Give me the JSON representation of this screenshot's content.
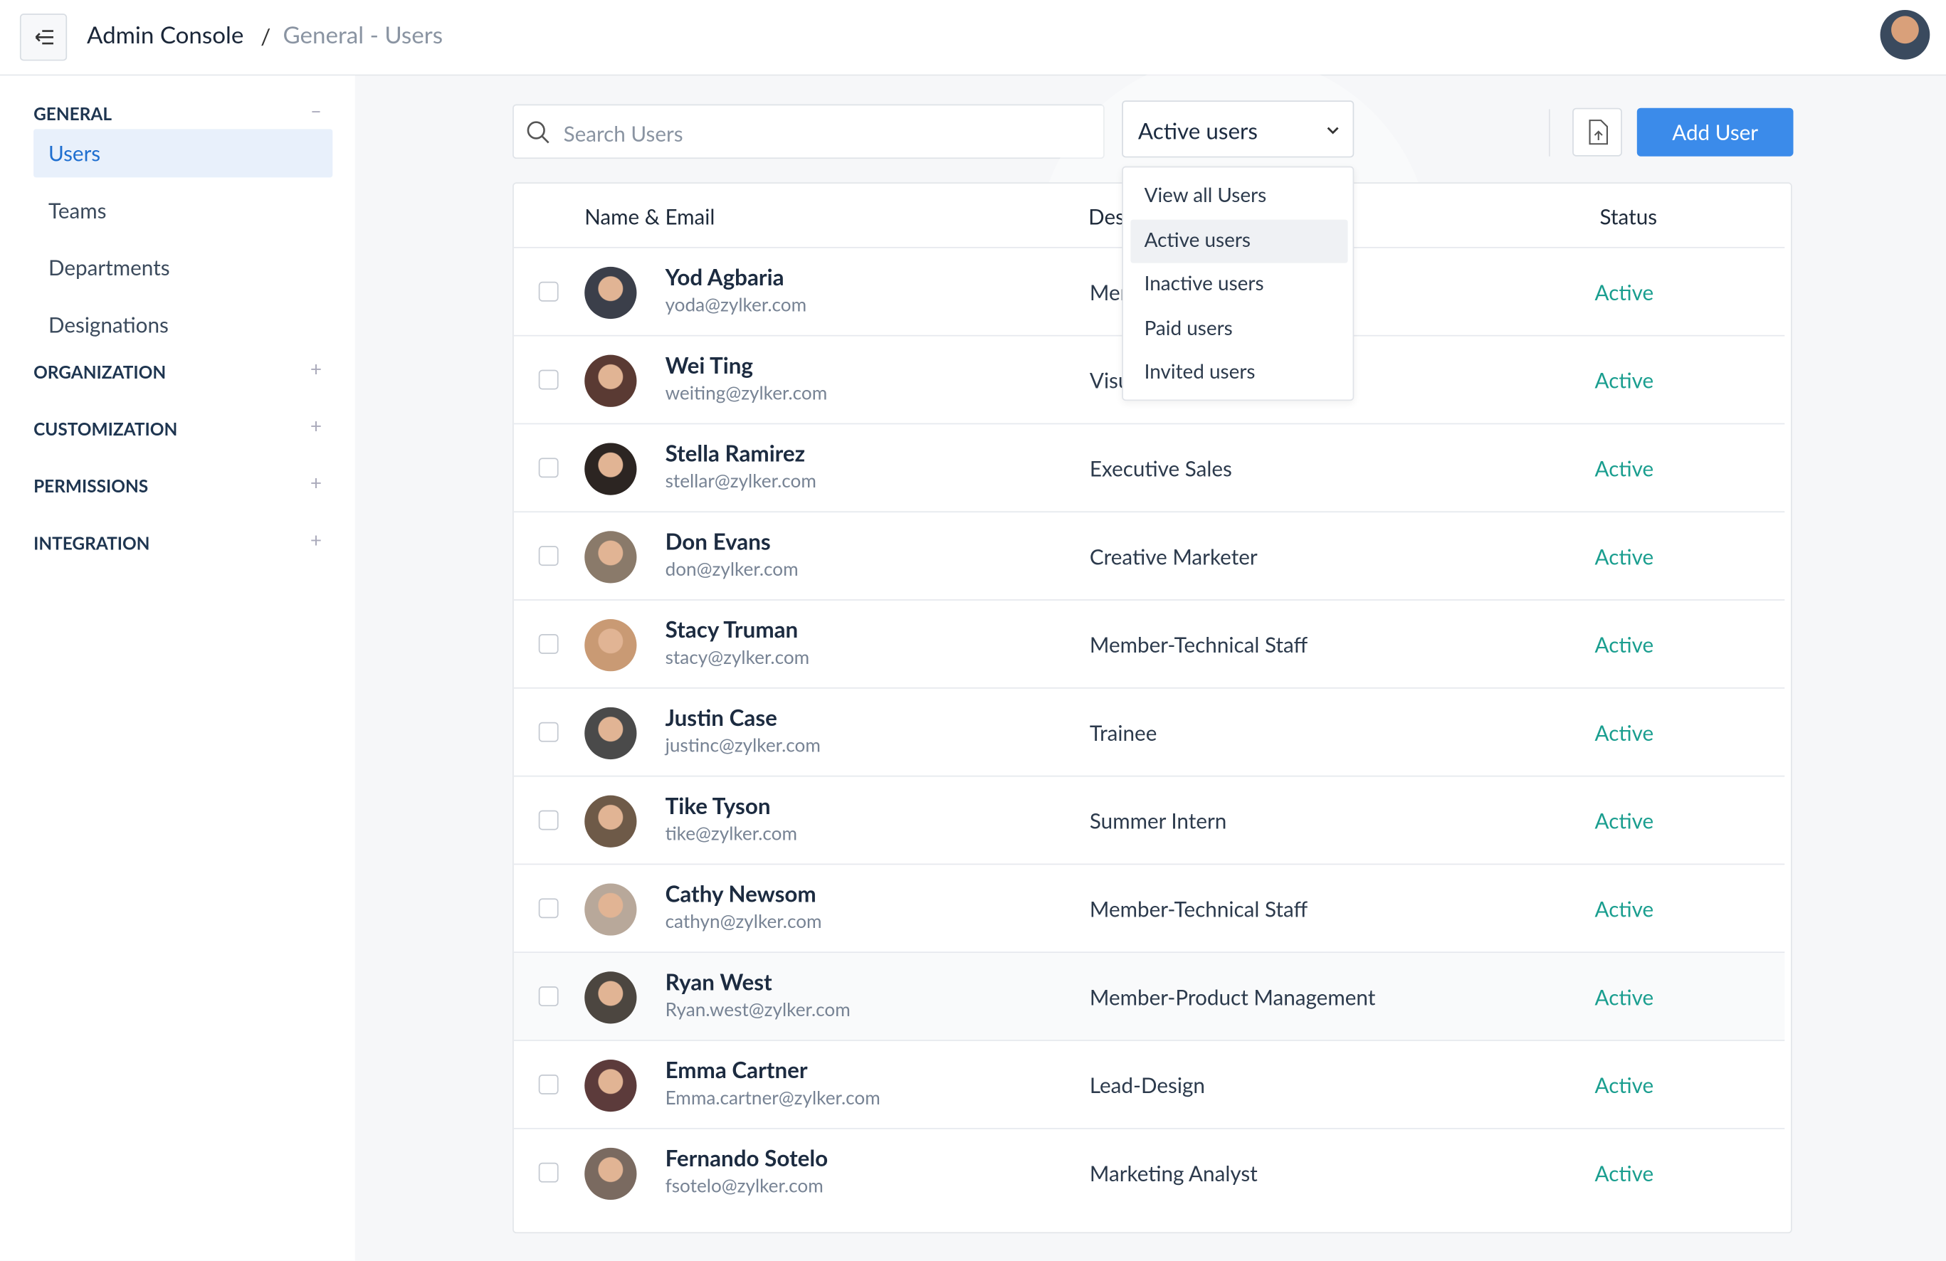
{
  "header": {
    "title": "Admin Console",
    "separator": "/",
    "breadcrumb": "General - Users"
  },
  "sidebar": {
    "sections": [
      {
        "title": "GENERAL",
        "items": [
          "Users",
          "Teams",
          "Departments",
          "Designations"
        ]
      },
      {
        "title": "ORGANIZATION",
        "items": []
      },
      {
        "title": "CUSTOMIZATION",
        "items": []
      },
      {
        "title": "PERMISSIONS",
        "items": []
      },
      {
        "title": "INTEGRATION",
        "items": []
      }
    ]
  },
  "toolbar": {
    "search_placeholder": "Search Users",
    "filter": "Active users",
    "add_button": "Add User"
  },
  "filter_menu": [
    "View all Users",
    "Active users",
    "Inactive users",
    "Paid users",
    "Invited users"
  ],
  "table": {
    "columns": [
      "Name & Email",
      "Designation",
      "Status"
    ],
    "rows": [
      {
        "name": "Yod Agbaria",
        "email": "yoda@zylker.com",
        "designation": "Member-Technical Staff",
        "status": "Active"
      },
      {
        "name": "Wei Ting",
        "email": "weiting@zylker.com",
        "designation": "Visual Designer",
        "status": "Active"
      },
      {
        "name": "Stella Ramirez",
        "email": "stellar@zylker.com",
        "designation": "Executive Sales",
        "status": "Active"
      },
      {
        "name": "Don Evans",
        "email": "don@zylker.com",
        "designation": "Creative Marketer",
        "status": "Active"
      },
      {
        "name": "Stacy Truman",
        "email": "stacy@zylker.com",
        "designation": "Member-Technical Staff",
        "status": "Active"
      },
      {
        "name": "Justin Case",
        "email": "justinc@zylker.com",
        "designation": "Trainee",
        "status": "Active"
      },
      {
        "name": "Tike Tyson",
        "email": "tike@zylker.com",
        "designation": "Summer Intern",
        "status": "Active"
      },
      {
        "name": "Cathy Newsom",
        "email": "cathyn@zylker.com",
        "designation": "Member-Technical Staff",
        "status": "Active"
      },
      {
        "name": "Ryan West",
        "email": "Ryan.west@zylker.com",
        "designation": "Member-Product Management",
        "status": "Active"
      },
      {
        "name": "Emma Cartner",
        "email": "Emma.cartner@zylker.com",
        "designation": "Lead-Design",
        "status": "Active"
      },
      {
        "name": "Fernando Sotelo",
        "email": "fsotelo@zylker.com",
        "designation": "Marketing Analyst",
        "status": "Active"
      }
    ]
  }
}
